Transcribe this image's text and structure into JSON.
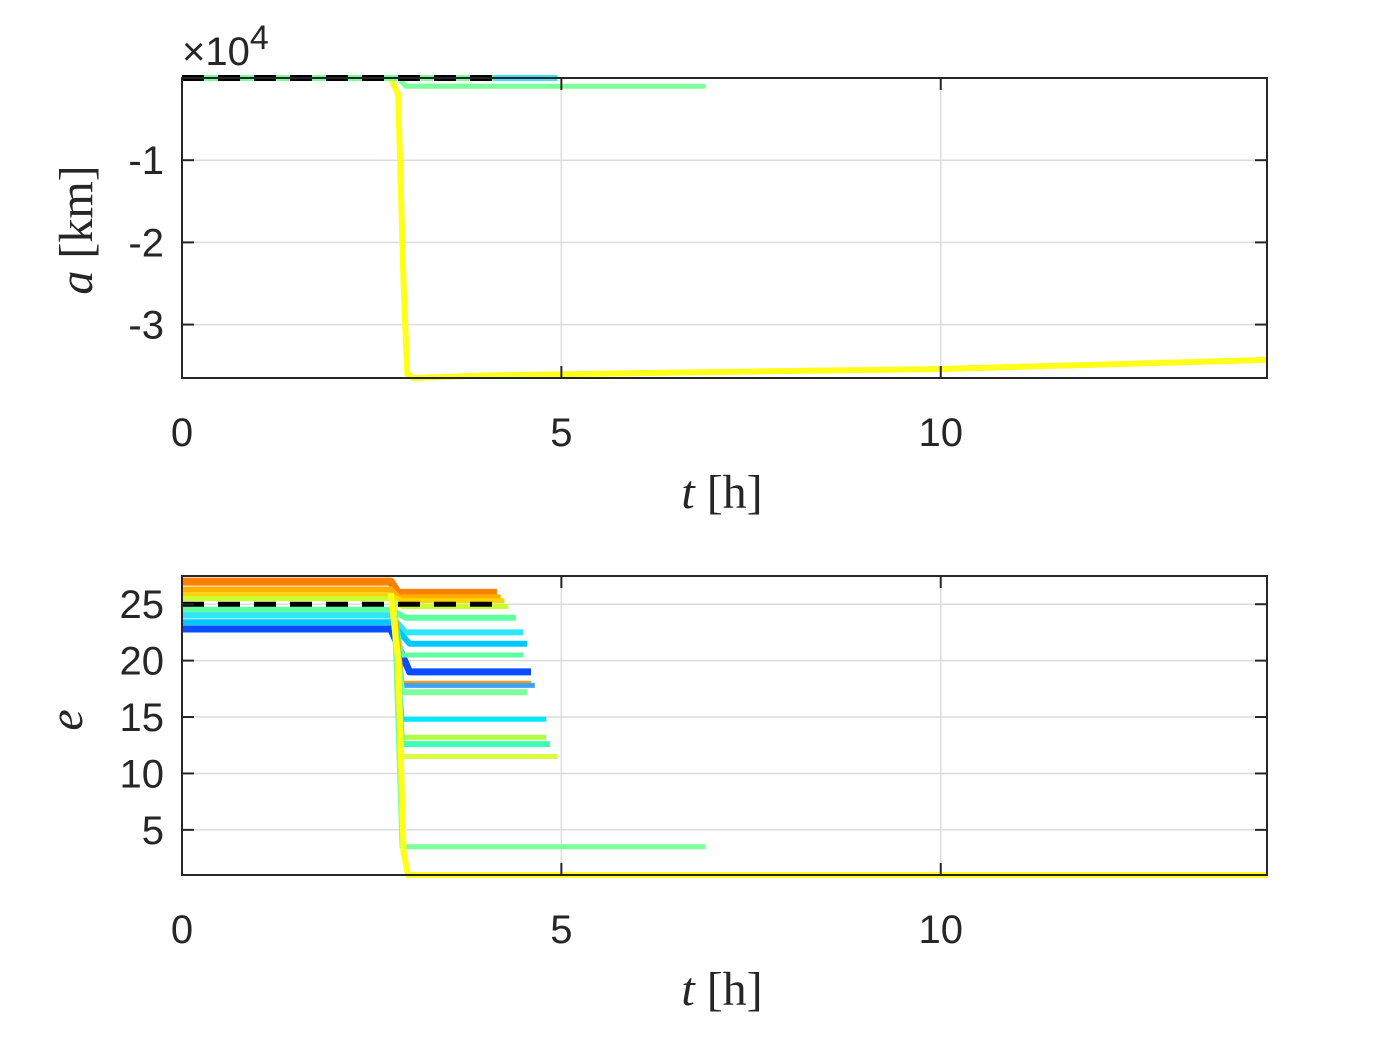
{
  "chart_data": [
    {
      "type": "line",
      "ylabel_var": "a",
      "ylabel_unit": "[km]",
      "xlabel_var": "t",
      "xlabel_unit": "[h]",
      "exponent_label": "×10",
      "exponent_power": "4",
      "xlim": [
        0,
        14.3
      ],
      "ylim": [
        -36500,
        0
      ],
      "x_ticks": [
        0,
        5,
        10
      ],
      "y_ticks": [
        -10000,
        -20000,
        -30000
      ],
      "y_tick_labels": [
        "-1",
        "-2",
        "-3"
      ],
      "grid": true,
      "series": [
        {
          "color": "#0a4cff",
          "width": 6,
          "points": [
            [
              0,
              0
            ],
            [
              4.9,
              0
            ]
          ]
        },
        {
          "color": "#3ee0ff",
          "width": 6,
          "points": [
            [
              0,
              0
            ],
            [
              4.95,
              0
            ]
          ]
        },
        {
          "color": "#7cff9a",
          "width": 5,
          "points": [
            [
              2.85,
              0
            ],
            [
              2.95,
              -1000
            ],
            [
              6.9,
              -1000
            ]
          ]
        },
        {
          "color": "#ffff1a",
          "width": 6,
          "points": [
            [
              2.75,
              0
            ],
            [
              2.85,
              -2000
            ],
            [
              2.92,
              -25000
            ],
            [
              2.97,
              -36000
            ],
            [
              3.05,
              -36500
            ],
            [
              4,
              -36200
            ],
            [
              6,
              -35900
            ],
            [
              10,
              -35400
            ],
            [
              14.3,
              -34300
            ]
          ]
        },
        {
          "color": "#7cff9a",
          "width": 6,
          "points": [
            [
              0,
              0
            ],
            [
              4.1,
              0
            ]
          ]
        },
        {
          "color": "#000000",
          "width": 6,
          "dash": "22,14",
          "points": [
            [
              0,
              0
            ],
            [
              4.15,
              0
            ]
          ]
        }
      ]
    },
    {
      "type": "line",
      "ylabel_var": "e",
      "xlabel_var": "t",
      "xlabel_unit": "[h]",
      "xlim": [
        0,
        14.3
      ],
      "ylim": [
        1,
        27.5
      ],
      "x_ticks": [
        0,
        5,
        10
      ],
      "y_ticks": [
        5,
        10,
        15,
        20,
        25
      ],
      "y_tick_labels": [
        "5",
        "10",
        "15",
        "20",
        "25"
      ],
      "grid": true,
      "series": [
        {
          "color": "#ff8000",
          "width": 8,
          "points": [
            [
              0,
              27
            ],
            [
              2.75,
              27
            ],
            [
              2.85,
              26
            ],
            [
              4.15,
              26
            ]
          ]
        },
        {
          "color": "#ffb000",
          "width": 6,
          "points": [
            [
              0,
              26.3
            ],
            [
              2.75,
              26.3
            ],
            [
              2.85,
              25.6
            ],
            [
              4.2,
              25.6
            ]
          ]
        },
        {
          "color": "#ffd400",
          "width": 5,
          "points": [
            [
              0,
              25.8
            ],
            [
              2.75,
              25.8
            ],
            [
              2.9,
              25.3
            ],
            [
              4.25,
              25.3
            ]
          ]
        },
        {
          "color": "#c8ff30",
          "width": 5,
          "points": [
            [
              0,
              25.5
            ],
            [
              2.75,
              25.5
            ],
            [
              2.9,
              24.8
            ],
            [
              4.3,
              24.8
            ]
          ]
        },
        {
          "color": "#5effa0",
          "width": 6,
          "points": [
            [
              0,
              24.5
            ],
            [
              2.75,
              24.5
            ],
            [
              2.95,
              23.8
            ],
            [
              4.4,
              23.8
            ]
          ]
        },
        {
          "color": "#30e6ff",
          "width": 6,
          "points": [
            [
              0,
              24
            ],
            [
              2.75,
              24
            ],
            [
              2.95,
              22.5
            ],
            [
              4.5,
              22.5
            ]
          ]
        },
        {
          "color": "#00c8ff",
          "width": 6,
          "points": [
            [
              0,
              23.4
            ],
            [
              2.75,
              23.4
            ],
            [
              3.0,
              21.5
            ],
            [
              4.55,
              21.5
            ]
          ]
        },
        {
          "color": "#0a4cff",
          "width": 7,
          "points": [
            [
              0,
              22.8
            ],
            [
              2.75,
              22.8
            ],
            [
              3.0,
              19
            ],
            [
              4.6,
              19
            ]
          ]
        },
        {
          "color": "#5effa0",
          "width": 5,
          "points": [
            [
              2.8,
              24
            ],
            [
              2.9,
              20.5
            ],
            [
              4.5,
              20.5
            ]
          ]
        },
        {
          "color": "#ffa000",
          "width": 5,
          "points": [
            [
              2.8,
              25
            ],
            [
              2.9,
              18
            ],
            [
              4.6,
              18
            ]
          ]
        },
        {
          "color": "#40a0ff",
          "width": 5,
          "points": [
            [
              2.8,
              23
            ],
            [
              2.9,
              17.8
            ],
            [
              4.65,
              17.8
            ]
          ]
        },
        {
          "color": "#7cff9a",
          "width": 6,
          "points": [
            [
              2.8,
              23.5
            ],
            [
              2.9,
              17.2
            ],
            [
              4.55,
              17.2
            ]
          ]
        },
        {
          "color": "#00e8ff",
          "width": 5,
          "points": [
            [
              2.8,
              23
            ],
            [
              2.9,
              14.8
            ],
            [
              4.8,
              14.8
            ]
          ]
        },
        {
          "color": "#b0ff40",
          "width": 5,
          "points": [
            [
              2.8,
              24
            ],
            [
              2.9,
              13.2
            ],
            [
              4.8,
              13.2
            ]
          ]
        },
        {
          "color": "#40ffb0",
          "width": 6,
          "points": [
            [
              2.8,
              23.5
            ],
            [
              2.9,
              12.6
            ],
            [
              4.85,
              12.6
            ]
          ]
        },
        {
          "color": "#d8ff40",
          "width": 5,
          "points": [
            [
              2.8,
              25
            ],
            [
              2.9,
              11.5
            ],
            [
              4.95,
              11.5
            ]
          ]
        },
        {
          "color": "#7cff9a",
          "width": 5,
          "points": [
            [
              2.8,
              24
            ],
            [
              2.9,
              3.5
            ],
            [
              6.9,
              3.5
            ]
          ]
        },
        {
          "color": "#ffff1a",
          "width": 6,
          "points": [
            [
              2.75,
              26
            ],
            [
              2.85,
              20
            ],
            [
              2.92,
              3
            ],
            [
              2.98,
              1
            ],
            [
              14.3,
              1
            ]
          ]
        },
        {
          "color": "#000000",
          "width": 5,
          "dash": "22,14",
          "points": [
            [
              0,
              25
            ],
            [
              4.15,
              25
            ]
          ]
        }
      ]
    }
  ]
}
